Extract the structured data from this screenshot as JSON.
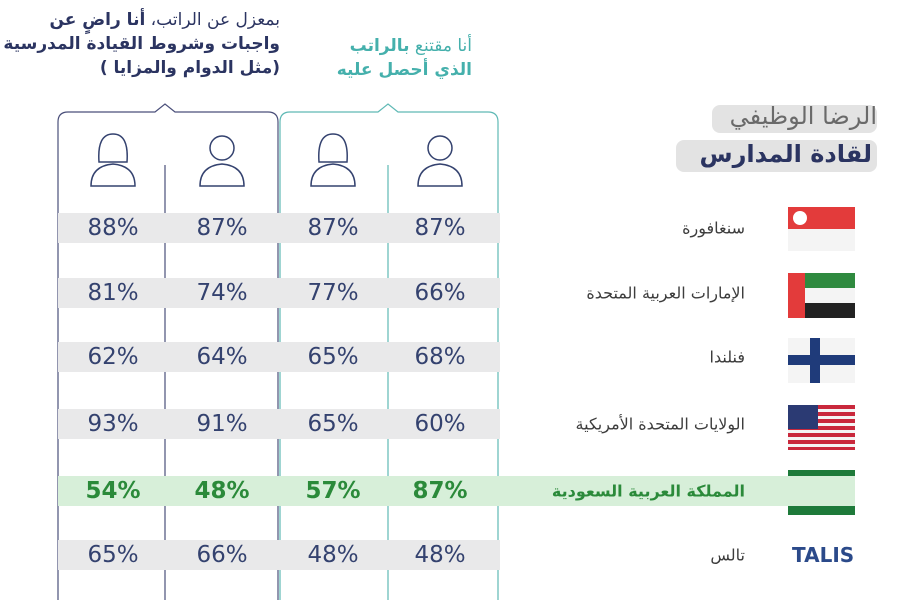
{
  "title": {
    "line1": "الرضا الوظيفي",
    "line2": "لقادة المدارس"
  },
  "headers": [
    {
      "line1_normal": "أنا مقتنع ",
      "line1_bold": "بالراتب",
      "line2": "الذي أحصل عليه"
    },
    {
      "line1_normal": "بمعزل عن الراتب، ",
      "line1_bold": "أنا راضٍ عن",
      "line2": "واجبات وشروط القيادة المدرسية",
      "line3": "(مثل الدوام والمزايا )"
    }
  ],
  "table": {
    "rows": [
      {
        "country": "سنغافورة",
        "values": [
          "87%",
          "87%",
          "87%",
          "88%"
        ]
      },
      {
        "country": "الإمارات العربية المتحدة",
        "values": [
          "66%",
          "77%",
          "74%",
          "81%"
        ]
      },
      {
        "country": "فنلندا",
        "values": [
          "68%",
          "65%",
          "64%",
          "62%"
        ]
      },
      {
        "country": "الولايات المتحدة الأمريكية",
        "values": [
          "60%",
          "65%",
          "91%",
          "93%"
        ]
      },
      {
        "country": "المملكة العربية السعودية",
        "values": [
          "87%",
          "57%",
          "48%",
          "54%"
        ]
      },
      {
        "country": "تالس",
        "logo": "TALIS",
        "values": [
          "48%",
          "48%",
          "66%",
          "65%"
        ]
      }
    ]
  }
}
